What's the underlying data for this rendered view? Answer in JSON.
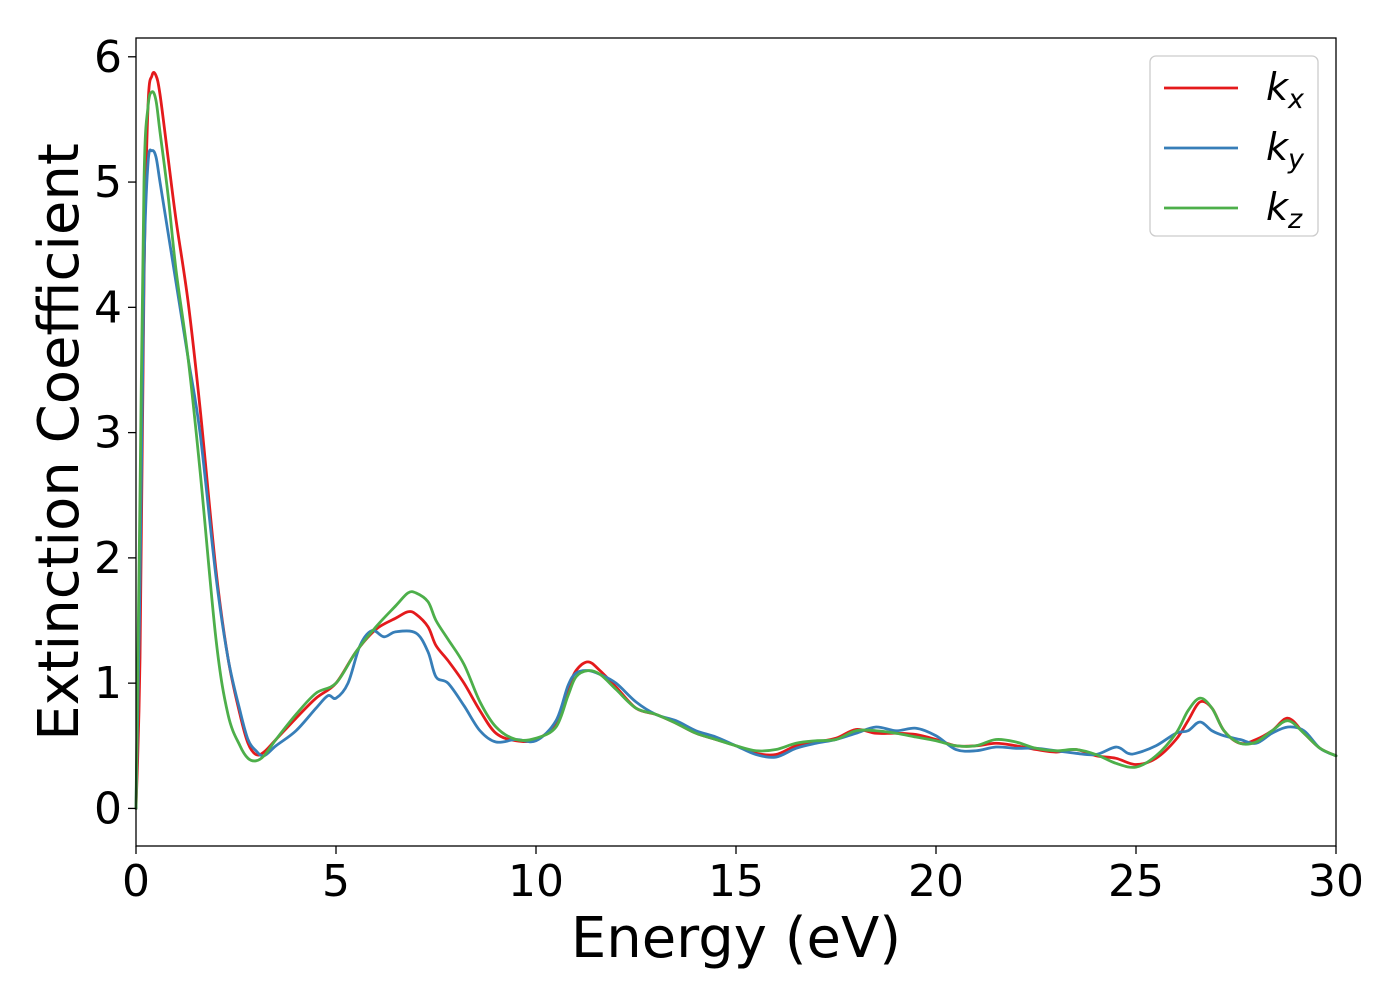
{
  "chart_data": {
    "type": "line",
    "xlabel": "Energy (eV)",
    "ylabel": "Extinction Coefficient",
    "xlim": [
      0,
      30
    ],
    "ylim": [
      -0.3,
      6.15
    ],
    "xticks": [
      0,
      5,
      10,
      15,
      20,
      25,
      30
    ],
    "xtick_labels": [
      "0",
      "5",
      "10",
      "15",
      "20",
      "25",
      "30"
    ],
    "yticks": [
      0,
      1,
      2,
      3,
      4,
      5,
      6
    ],
    "ytick_labels": [
      "0",
      "1",
      "2",
      "3",
      "4",
      "5",
      "6"
    ],
    "grid": false,
    "legend_position": "top-right",
    "series": [
      {
        "name": "k",
        "subscript": "x",
        "color": "#e41a1c",
        "x": [
          0,
          0.1,
          0.2,
          0.3,
          0.4,
          0.5,
          0.6,
          0.8,
          1.0,
          1.3,
          1.6,
          2.0,
          2.3,
          2.6,
          2.8,
          3.0,
          3.2,
          3.5,
          4.0,
          4.5,
          5.0,
          5.5,
          6.0,
          6.5,
          6.8,
          7.0,
          7.3,
          7.5,
          7.8,
          8.2,
          8.6,
          9.0,
          9.5,
          10.0,
          10.5,
          10.8,
          11.0,
          11.3,
          11.6,
          12.0,
          12.5,
          13.0,
          13.5,
          14.0,
          14.5,
          15.0,
          15.5,
          16.0,
          16.5,
          17.0,
          17.5,
          18.0,
          18.5,
          19.0,
          19.5,
          20.0,
          20.5,
          21.0,
          21.5,
          22.0,
          22.5,
          23.0,
          23.5,
          24.0,
          24.5,
          25.0,
          25.5,
          26.0,
          26.3,
          26.6,
          26.9,
          27.2,
          27.6,
          28.0,
          28.4,
          28.8,
          29.2,
          29.6,
          30.0
        ],
        "values": [
          0,
          1.2,
          4.2,
          5.6,
          5.85,
          5.85,
          5.7,
          5.2,
          4.7,
          4.05,
          3.2,
          1.9,
          1.2,
          0.75,
          0.52,
          0.43,
          0.45,
          0.55,
          0.72,
          0.88,
          1.0,
          1.25,
          1.43,
          1.52,
          1.57,
          1.55,
          1.45,
          1.3,
          1.18,
          1.0,
          0.78,
          0.6,
          0.54,
          0.55,
          0.68,
          0.95,
          1.1,
          1.17,
          1.1,
          0.97,
          0.8,
          0.75,
          0.68,
          0.6,
          0.55,
          0.5,
          0.44,
          0.43,
          0.5,
          0.53,
          0.56,
          0.63,
          0.6,
          0.6,
          0.59,
          0.55,
          0.5,
          0.5,
          0.52,
          0.5,
          0.47,
          0.45,
          0.47,
          0.42,
          0.4,
          0.35,
          0.4,
          0.55,
          0.7,
          0.85,
          0.8,
          0.62,
          0.52,
          0.55,
          0.62,
          0.72,
          0.6,
          0.48,
          0.42
        ]
      },
      {
        "name": "k",
        "subscript": "y",
        "color": "#377eb8",
        "x": [
          0,
          0.1,
          0.2,
          0.3,
          0.4,
          0.5,
          0.6,
          0.8,
          1.0,
          1.3,
          1.6,
          2.0,
          2.3,
          2.6,
          2.8,
          3.0,
          3.2,
          3.5,
          4.0,
          4.5,
          4.8,
          5.0,
          5.3,
          5.6,
          5.9,
          6.2,
          6.5,
          7.0,
          7.3,
          7.5,
          7.8,
          8.2,
          8.6,
          9.0,
          9.5,
          10.0,
          10.5,
          10.8,
          11.0,
          11.3,
          11.6,
          12.0,
          12.5,
          13.0,
          13.5,
          14.0,
          14.5,
          15.0,
          15.5,
          16.0,
          16.5,
          17.0,
          17.5,
          18.0,
          18.5,
          19.0,
          19.5,
          20.0,
          20.5,
          21.0,
          21.5,
          22.0,
          22.5,
          23.0,
          23.5,
          24.0,
          24.5,
          24.8,
          25.0,
          25.5,
          26.0,
          26.3,
          26.6,
          26.9,
          27.2,
          27.6,
          28.0,
          28.4,
          28.8,
          29.2,
          29.6,
          30.0
        ],
        "values": [
          0,
          1.8,
          4.3,
          5.15,
          5.25,
          5.2,
          5.0,
          4.6,
          4.2,
          3.6,
          3.0,
          1.85,
          1.2,
          0.78,
          0.55,
          0.46,
          0.42,
          0.5,
          0.62,
          0.8,
          0.9,
          0.88,
          1.0,
          1.3,
          1.42,
          1.37,
          1.41,
          1.4,
          1.25,
          1.05,
          1.0,
          0.82,
          0.62,
          0.53,
          0.55,
          0.54,
          0.7,
          0.98,
          1.08,
          1.1,
          1.07,
          1.0,
          0.85,
          0.75,
          0.7,
          0.62,
          0.57,
          0.5,
          0.43,
          0.41,
          0.48,
          0.52,
          0.55,
          0.6,
          0.65,
          0.62,
          0.64,
          0.58,
          0.47,
          0.46,
          0.49,
          0.48,
          0.48,
          0.46,
          0.44,
          0.43,
          0.49,
          0.44,
          0.44,
          0.5,
          0.6,
          0.62,
          0.69,
          0.62,
          0.58,
          0.55,
          0.52,
          0.6,
          0.65,
          0.62,
          0.48,
          0.42
        ]
      },
      {
        "name": "k",
        "subscript": "z",
        "color": "#4daf4a",
        "x": [
          0,
          0.1,
          0.2,
          0.3,
          0.4,
          0.5,
          0.6,
          0.8,
          1.0,
          1.3,
          1.6,
          2.0,
          2.3,
          2.6,
          2.8,
          3.0,
          3.2,
          3.5,
          4.0,
          4.5,
          5.0,
          5.5,
          6.0,
          6.5,
          6.8,
          7.0,
          7.3,
          7.5,
          7.8,
          8.2,
          8.6,
          9.0,
          9.5,
          10.0,
          10.5,
          10.8,
          11.0,
          11.3,
          11.6,
          12.0,
          12.5,
          13.0,
          13.5,
          14.0,
          14.5,
          15.0,
          15.5,
          16.0,
          16.5,
          17.0,
          17.5,
          18.0,
          18.5,
          19.0,
          19.5,
          20.0,
          20.5,
          21.0,
          21.5,
          22.0,
          22.5,
          23.0,
          23.5,
          24.0,
          24.5,
          25.0,
          25.5,
          26.0,
          26.3,
          26.6,
          26.9,
          27.2,
          27.6,
          28.0,
          28.4,
          28.8,
          29.2,
          29.6,
          30.0
        ],
        "values": [
          0,
          2.5,
          5.0,
          5.6,
          5.72,
          5.65,
          5.4,
          4.9,
          4.3,
          3.6,
          2.7,
          1.35,
          0.75,
          0.5,
          0.4,
          0.38,
          0.42,
          0.55,
          0.75,
          0.92,
          1.0,
          1.25,
          1.45,
          1.62,
          1.72,
          1.72,
          1.65,
          1.5,
          1.35,
          1.15,
          0.85,
          0.65,
          0.55,
          0.56,
          0.65,
          0.9,
          1.05,
          1.1,
          1.07,
          0.95,
          0.8,
          0.75,
          0.68,
          0.6,
          0.55,
          0.5,
          0.46,
          0.47,
          0.52,
          0.54,
          0.55,
          0.62,
          0.62,
          0.6,
          0.57,
          0.54,
          0.5,
          0.5,
          0.55,
          0.53,
          0.48,
          0.46,
          0.47,
          0.43,
          0.36,
          0.33,
          0.42,
          0.6,
          0.78,
          0.88,
          0.8,
          0.62,
          0.52,
          0.53,
          0.62,
          0.7,
          0.6,
          0.48,
          0.42
        ]
      }
    ]
  }
}
